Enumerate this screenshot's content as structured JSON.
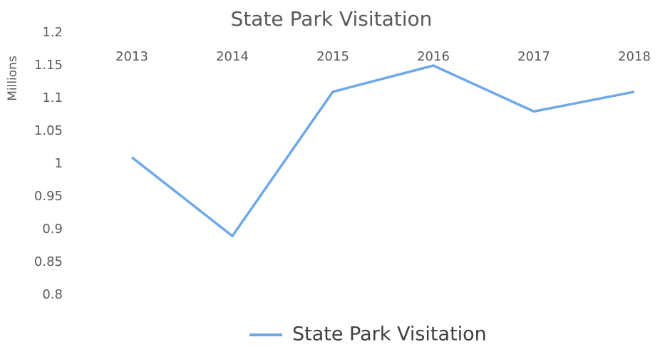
{
  "chart_data": {
    "type": "line",
    "title": "State Park Visitation",
    "y_label": "Millions",
    "categories": [
      "2013",
      "2014",
      "2015",
      "2016",
      "2017",
      "2018"
    ],
    "series": [
      {
        "name": "State Park Visitation",
        "color": "#6fa8e8",
        "values": [
          1.01,
          0.89,
          1.11,
          1.15,
          1.08,
          1.11
        ]
      }
    ],
    "ylim": [
      0.8,
      1.2
    ],
    "yticks": [
      0.8,
      0.85,
      0.9,
      0.95,
      1,
      1.05,
      1.1,
      1.15,
      1.2
    ],
    "grid": false,
    "legend": "bottom"
  }
}
